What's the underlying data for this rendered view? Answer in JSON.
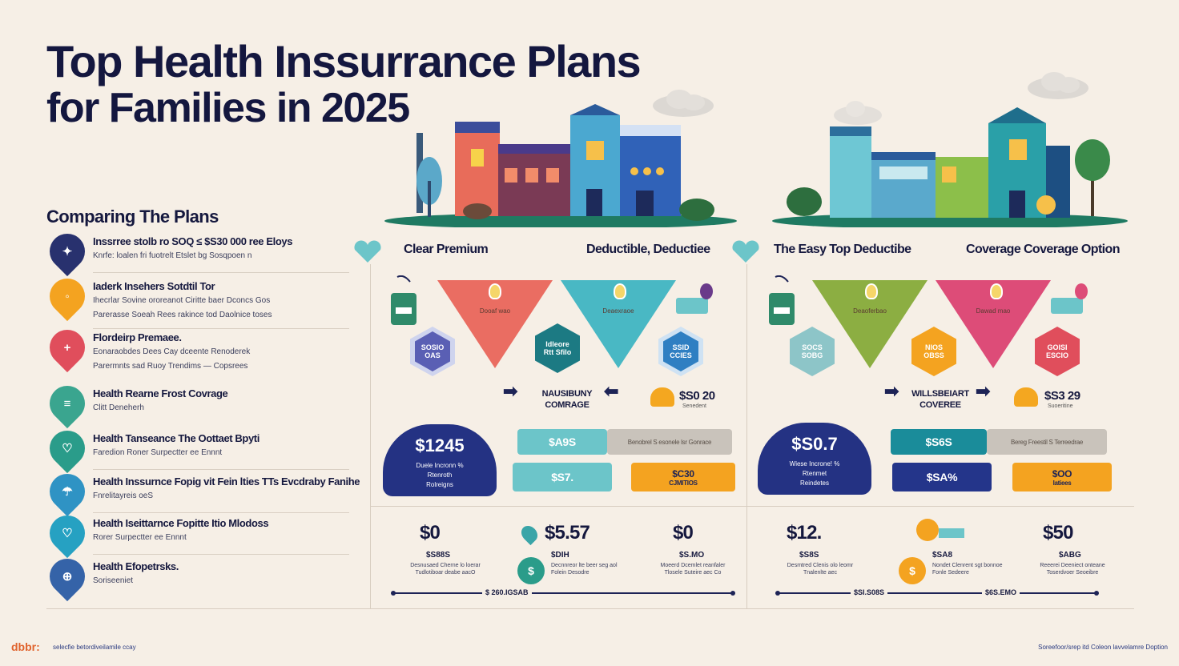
{
  "title": {
    "line1": "Top Health Inssurrance Plans",
    "line2": "for Families in 2025"
  },
  "sidebar": {
    "heading": "Comparing The Plans",
    "items": [
      {
        "line1": "Inssrree stolb ro SOQ ≤ $S30 000 ree Eloys",
        "line2": "Knrfe: loalen fri fuotrelt Etslet bg Sosqpoen n",
        "line3": "",
        "color": "#28316e",
        "icon": "✦"
      },
      {
        "line1": "Iaderk Insehers Sotdtil Tor",
        "line2": "Ihecrlar Sovine ororeanot Ciritte baer Dconcs Gos",
        "line3": "Parerasse Soeah Rees rakince tod Daolnice toses",
        "color": "#f4a320",
        "icon": "◦"
      },
      {
        "line1": "Flordeirp Premaee.",
        "line2": "Eonaraobdes  Dees Cay dceente Renoderek",
        "line3": "Parermnts sad Ruoy Trendims — Copsrees",
        "color": "#e04e5c",
        "icon": "+"
      },
      {
        "line1": "Health Rearne Frost Covrage",
        "line2": "Clitt Deneherh",
        "line3": "",
        "color": "#3aa58f",
        "icon": "≡"
      },
      {
        "line1": "Health Tanseance The Oottaet Bpyti",
        "line2": "Faredion  Roner Surpectter ee Ennnt",
        "line3": "",
        "color": "#2a9c8a",
        "icon": "♡"
      },
      {
        "line1": "Health Inssurnce Fopig vit Fein lties TTs Evcdraby Fanihe",
        "line2": "Fnrelitayreis oeS",
        "line3": "",
        "color": "#2f93c4",
        "icon": "☂"
      },
      {
        "line1": "Health Iseittarnce Fopitte Itio Mlodoss",
        "line2": "Rorer Surpectter ee Ennnt",
        "line3": "",
        "color": "#26a1c2",
        "icon": "♡"
      },
      {
        "line1": "Health Efopetrsks.",
        "line2": "Soriseeniet",
        "line3": "",
        "color": "#3563a8",
        "icon": "⊕"
      }
    ]
  },
  "panels": [
    {
      "col_left": "Clear Premium",
      "col_right": "Deductible, Deductiee",
      "funnels": [
        {
          "color": "#ea6d62",
          "label": "Dooaf wao"
        },
        {
          "color": "#49b8c4",
          "label": "Deaexraoe"
        }
      ],
      "hexes": [
        {
          "color": "#5a5fb4",
          "line1": "SOSIO",
          "line2": "OAS"
        },
        {
          "color": "#1c7a83",
          "line1": "Idleore",
          "line2": "Rtt Sfilo"
        },
        {
          "color": "#2f7fc2",
          "line1": "SSID",
          "line2": "CCIES"
        }
      ],
      "mid_label": [
        "NAUSIBUNY",
        "COMRAGE"
      ],
      "mid_price": "$S0 20",
      "mid_price_sub": "Senedent",
      "dome": {
        "big": "$1245",
        "small": [
          "Duele Incronn %",
          "Rtenroth",
          "Rolreigns"
        ]
      },
      "pills": [
        {
          "text": "$A9S",
          "color": "#6cc5c9"
        },
        {
          "text": "Benobrel S esonele lsr Gonrace",
          "color": "#c9c3bb"
        },
        {
          "text": "$S7.",
          "color": "#6cc5c9"
        },
        {
          "text": "$C30",
          "sub": "CJMITIOS",
          "color": "#f4a320"
        }
      ],
      "stats": [
        {
          "big": "$0",
          "sub": "$S88S",
          "fine": "Desnusaed Cherne lo loerar\nTudlotiboar deabe aacO"
        },
        {
          "big": "$5.57",
          "sub": "$DIH",
          "fine": "Decnnreor lte beer seg aol\nFolein Desodre"
        },
        {
          "big": "$0",
          "sub": "$S.MO",
          "fine": "Moeerd Dcemlet reanfaler\nTlosele Suteire aec Co"
        }
      ],
      "timeline": "$ 260.IGSAB"
    },
    {
      "col_left": "The Easy Top Deductibe",
      "col_right": "Coverage Coverage Option",
      "funnels": [
        {
          "color": "#8cae42",
          "label": "Deaoferbao"
        },
        {
          "color": "#dd4c78",
          "label": "Dawad mao"
        }
      ],
      "hexes": [
        {
          "color": "#8dc5c8",
          "line1": "SOCS",
          "line2": "SOBG"
        },
        {
          "color": "#f4a320",
          "line1": "NIOS",
          "line2": "OBSS"
        },
        {
          "color": "#e04e5c",
          "line1": "GOISI",
          "line2": "ESCIO"
        }
      ],
      "mid_label": [
        "WILLSBEIART",
        "COVEREE"
      ],
      "mid_price": "$S3 29",
      "mid_price_sub": "Suoeritine",
      "dome": {
        "big": "$S0.7",
        "small": [
          "Wiese Incrone! %",
          "Rtenmet",
          "Reindetes"
        ]
      },
      "pills": [
        {
          "text": "$S6S",
          "color": "#1a8c9a"
        },
        {
          "text": "Bereg Freestil S Terreedrae",
          "color": "#c9c3bb"
        },
        {
          "text": "$SA%",
          "color": "#24358a"
        },
        {
          "text": "$OO",
          "sub": "Iatiees",
          "color": "#f4a320"
        }
      ],
      "stats": [
        {
          "big": "$12.",
          "sub": "$S8S",
          "fine": "Desmtred Clenis olo leomr\nTnalenlte aec"
        },
        {
          "big": "",
          "sub": "$SA8",
          "fine": "Nondet Clenrent sgt bonnoe\nFonle Sedeere"
        },
        {
          "big": "$50",
          "sub": "$ABG",
          "fine": "Reeerei Deeniect onteane\nToserdvoer Seoeibre"
        }
      ],
      "timeline_left": "$SI.S08S",
      "timeline_right": "$6S.ЕМО"
    }
  ],
  "footer": {
    "brand": "dbbr:",
    "tagline": "selecfie betordiveilamile ccay",
    "right": "Soreefoor/srep itd  Coleon lavvelamre  Doption"
  },
  "colors": {
    "background": "#f6efe6",
    "navy": "#14173f",
    "teal": "#5fbdc4",
    "orange": "#f4a320"
  }
}
